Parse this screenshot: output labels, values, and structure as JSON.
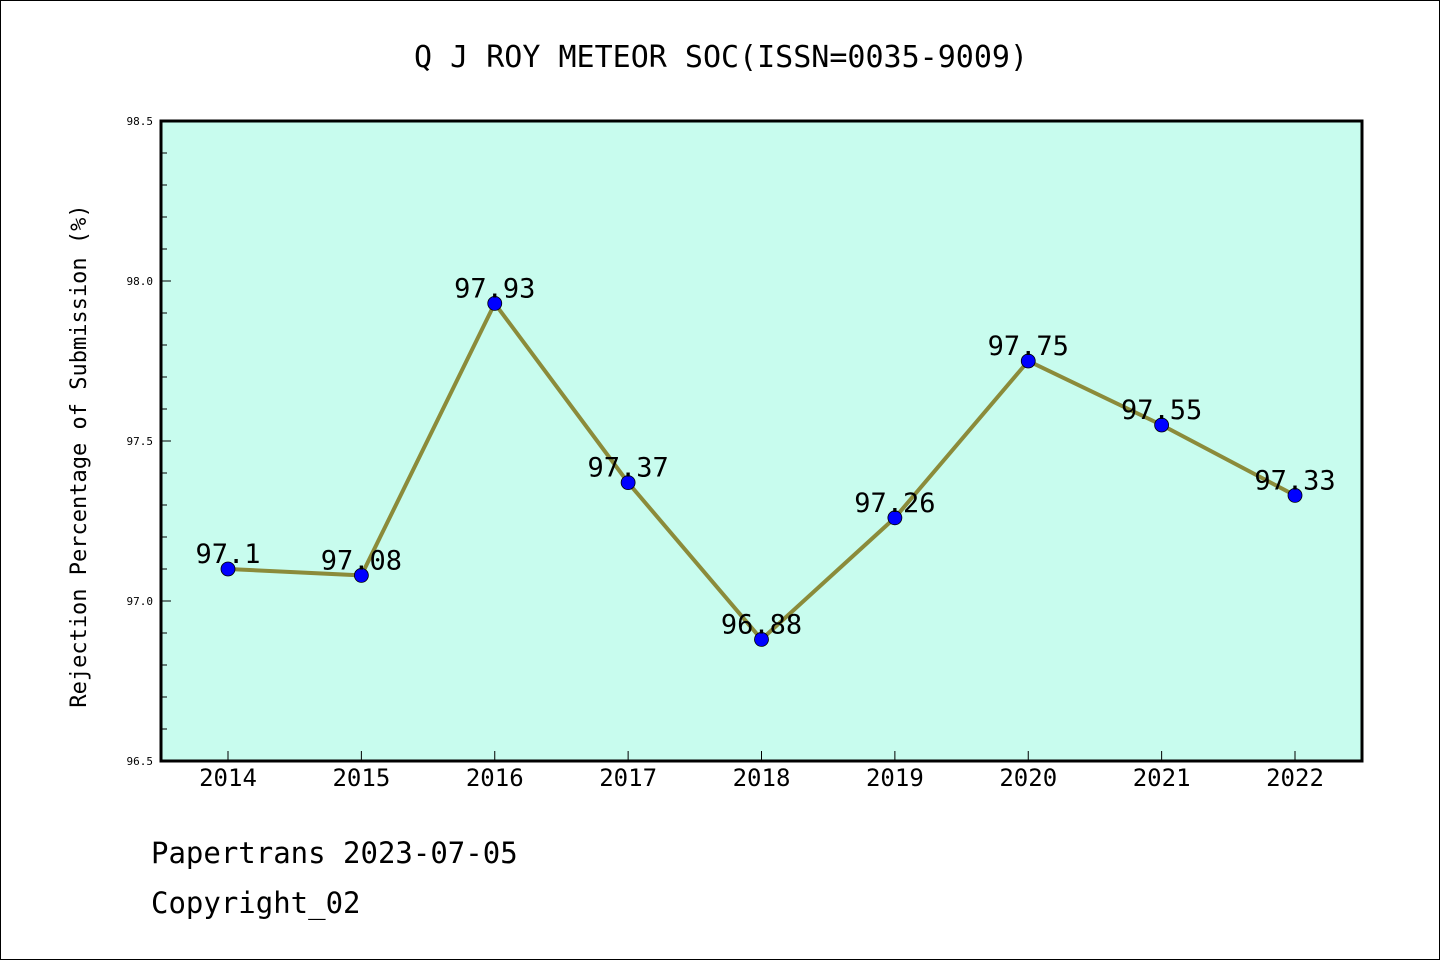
{
  "chart_data": {
    "type": "line",
    "title": "Q J ROY METEOR SOC(ISSN=0035-9009)",
    "ylabel": "Rejection Percentage of Submission (%)",
    "xlabel": "",
    "categories": [
      "2014",
      "2015",
      "2016",
      "2017",
      "2018",
      "2019",
      "2020",
      "2021",
      "2022"
    ],
    "values": [
      97.1,
      97.08,
      97.93,
      97.37,
      96.88,
      97.26,
      97.75,
      97.55,
      97.33
    ],
    "data_labels": [
      "97.1",
      "97.08",
      "97.93",
      "97.37",
      "96.88",
      "97.26",
      "97.75",
      "97.55",
      "97.33"
    ],
    "ylim": [
      96.5,
      98.5
    ],
    "yticks": [
      "96.5",
      "97.0",
      "97.5",
      "98.0",
      "98.5"
    ],
    "grid": false,
    "colors": {
      "plot_background": "#c8fcee",
      "line": "#8b8b3a",
      "marker": "#0000ff"
    }
  },
  "footer": {
    "source": "Papertrans 2023-07-05",
    "copyright": "Copyright_02"
  }
}
